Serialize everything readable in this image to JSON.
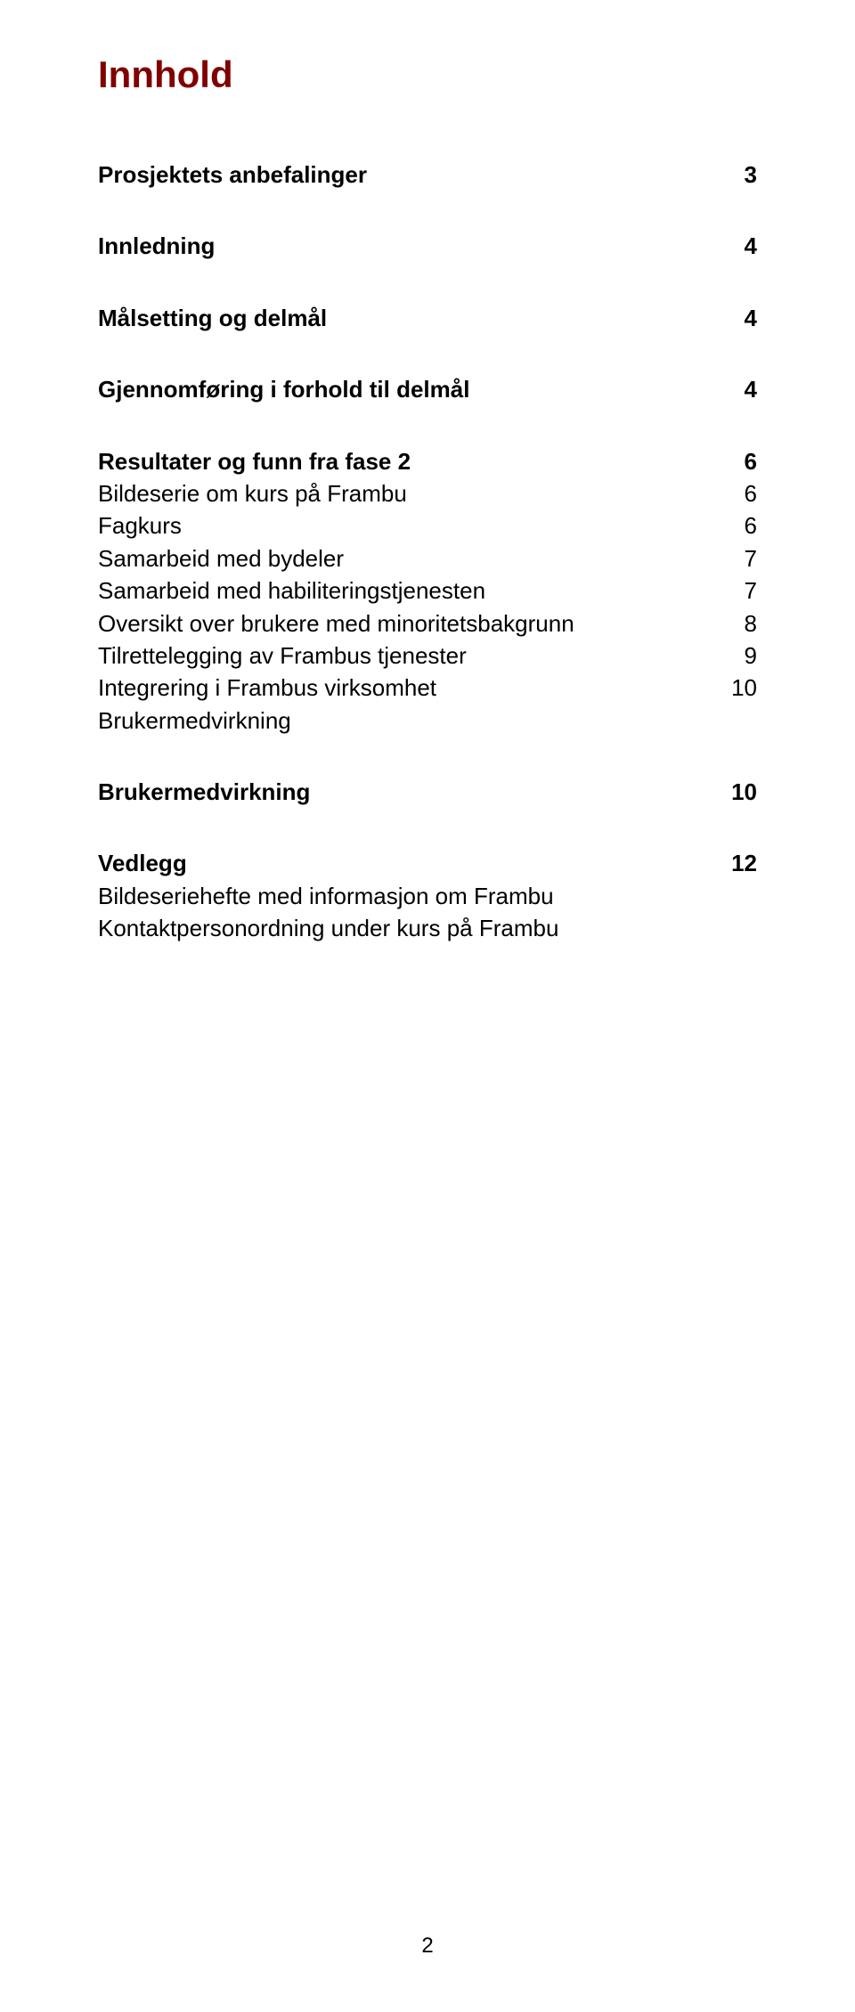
{
  "title": "Innhold",
  "colors": {
    "title_color": "#800000",
    "text_color": "#000000",
    "background": "#ffffff"
  },
  "typography": {
    "title_fontsize": 42,
    "body_fontsize": 26,
    "title_weight": "bold",
    "section_weight": "bold"
  },
  "entries": {
    "prosjektets": {
      "label": "Prosjektets anbefalinger",
      "page": "3"
    },
    "innledning": {
      "label": "Innledning",
      "page": "4"
    },
    "malsetting": {
      "label": "Målsetting og delmål",
      "page": "4"
    },
    "gjennomforing": {
      "label": "Gjennomføring i forhold til delmål",
      "page": "4"
    },
    "resultater": {
      "label": "Resultater og funn fra fase 2",
      "page": "6"
    },
    "bildeserie": {
      "label": "Bildeserie om kurs på Frambu",
      "page": "6"
    },
    "fagkurs": {
      "label": "Fagkurs",
      "page": "6"
    },
    "samarbeid_bydeler": {
      "label": "Samarbeid med bydeler",
      "page": "7"
    },
    "samarbeid_habil": {
      "label": "Samarbeid med habiliteringstjenesten",
      "page": "7"
    },
    "oversikt": {
      "label": "Oversikt over brukere med minoritetsbakgrunn",
      "page": "8"
    },
    "tilrettelegging": {
      "label": "Tilrettelegging av Frambus tjenester",
      "page": "9"
    },
    "integrering": {
      "label": "Integrering i Frambus virksomhet",
      "page": "10"
    },
    "brukermedvirkning_sub": {
      "label": "Brukermedvirkning",
      "page": ""
    },
    "brukermedvirkning": {
      "label": "Brukermedvirkning",
      "page": "10"
    },
    "vedlegg": {
      "label": "Vedlegg",
      "page": "12"
    },
    "bildeseriehefte": {
      "label": "Bildeseriehefte med informasjon om Frambu",
      "page": ""
    },
    "kontaktperson": {
      "label": "Kontaktpersonordning under kurs på Frambu",
      "page": ""
    }
  },
  "page_number": "2"
}
